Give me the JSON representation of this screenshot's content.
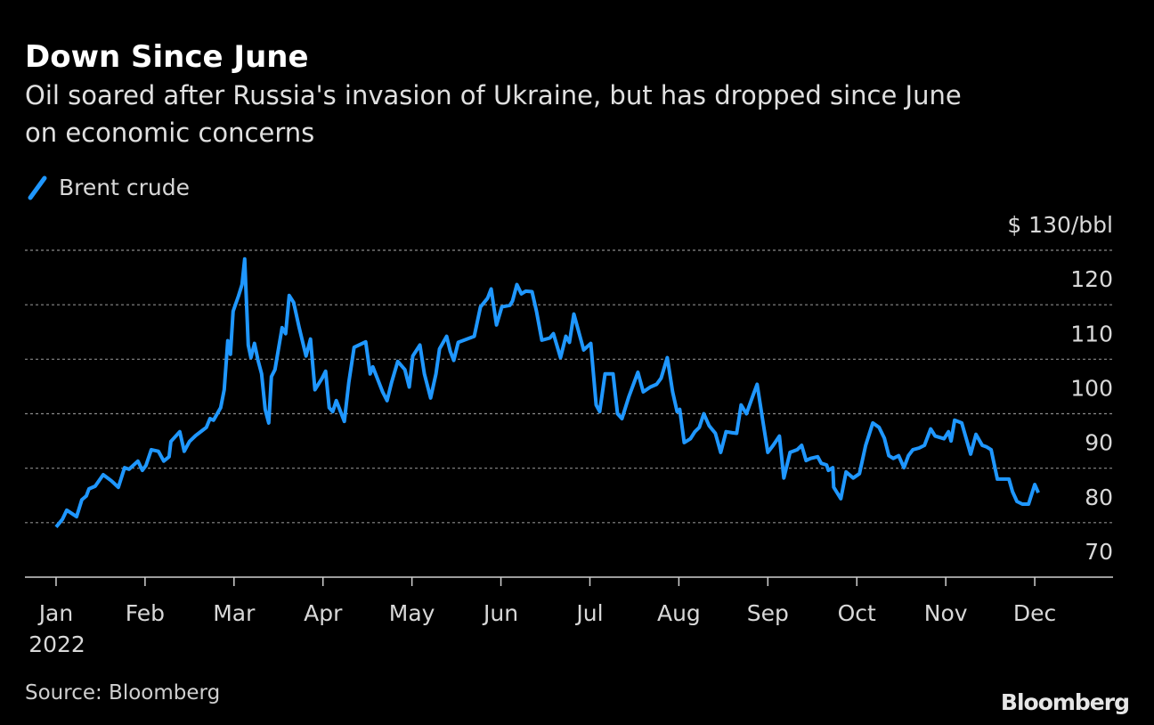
{
  "chart_data": {
    "type": "line",
    "title": "Down Since June",
    "subtitle": [
      "Oil soared after Russia's invasion of Ukraine, but has dropped since June",
      "on economic concerns"
    ],
    "source": "Source: Bloomberg",
    "brand": "Bloomberg",
    "year_label": "2022",
    "xlim": [
      -0.35,
      11.88
    ],
    "xticks": [
      {
        "value": 0,
        "label": "Jan"
      },
      {
        "value": 1,
        "label": "Feb"
      },
      {
        "value": 2,
        "label": "Mar"
      },
      {
        "value": 3,
        "label": "Apr"
      },
      {
        "value": 4,
        "label": "May"
      },
      {
        "value": 5,
        "label": "Jun"
      },
      {
        "value": 6,
        "label": "Jul"
      },
      {
        "value": 7,
        "label": "Aug"
      },
      {
        "value": 8,
        "label": "Sep"
      },
      {
        "value": 9,
        "label": "Oct"
      },
      {
        "value": 10,
        "label": "Nov"
      },
      {
        "value": 11,
        "label": "Dec"
      }
    ],
    "ylim": [
      70,
      130
    ],
    "yticks": [
      70,
      80,
      90,
      100,
      110,
      120,
      {
        "value": 130,
        "label": "$ 130/bbl"
      }
    ],
    "grid": true,
    "x": [
      0,
      0.07,
      0.12,
      0.23,
      0.29,
      0.34,
      0.37,
      0.44,
      0.53,
      0.62,
      0.7,
      0.77,
      0.82,
      0.92,
      0.97,
      1.01,
      1.07,
      1.15,
      1.21,
      1.27,
      1.29,
      1.39,
      1.44,
      1.5,
      1.57,
      1.65,
      1.69,
      1.73,
      1.77,
      1.85,
      1.89,
      1.93,
      1.96,
      1.99,
      2.05,
      2.09,
      2.12,
      2.16,
      2.19,
      2.23,
      2.27,
      2.31,
      2.35,
      2.39,
      2.42,
      2.46,
      2.54,
      2.58,
      2.62,
      2.67,
      2.73,
      2.81,
      2.86,
      2.91,
      2.99,
      3.03,
      3.07,
      3.11,
      3.15,
      3.24,
      3.29,
      3.35,
      3.48,
      3.53,
      3.56,
      3.67,
      3.72,
      3.77,
      3.84,
      3.92,
      3.97,
      4.01,
      4.09,
      4.14,
      4.21,
      4.27,
      4.31,
      4.39,
      4.43,
      4.47,
      4.52,
      4.7,
      4.77,
      4.85,
      4.89,
      4.95,
      5.01,
      5.1,
      5.13,
      5.18,
      5.23,
      5.28,
      5.35,
      5.4,
      5.46,
      5.55,
      5.59,
      5.67,
      5.73,
      5.77,
      5.82,
      5.93,
      6.01,
      6.07,
      6.11,
      6.17,
      6.26,
      6.31,
      6.36,
      6.44,
      6.54,
      6.6,
      6.68,
      6.75,
      6.8,
      6.87,
      6.93,
      6.98,
      7.01,
      7.06,
      7.13,
      7.18,
      7.23,
      7.28,
      7.34,
      7.41,
      7.47,
      7.53,
      7.6,
      7.65,
      7.7,
      7.76,
      7.83,
      7.88,
      7.94,
      8.0,
      8.06,
      8.13,
      8.18,
      8.25,
      8.33,
      8.38,
      8.43,
      8.48,
      8.56,
      8.6,
      8.66,
      8.68,
      8.73,
      8.74,
      8.82,
      8.88,
      8.96,
      9.03,
      9.1,
      9.18,
      9.25,
      9.31,
      9.36,
      9.41,
      9.47,
      9.53,
      9.58,
      9.63,
      9.7,
      9.76,
      9.83,
      9.88,
      9.98,
      10.03,
      10.06,
      10.1,
      10.18,
      10.28,
      10.34,
      10.41,
      10.46,
      10.51,
      10.58,
      10.65,
      10.71,
      10.75,
      10.8,
      10.86,
      10.93,
      11.0,
      11.04
    ],
    "series": [
      {
        "name": "Brent crude",
        "color": "#1f97ff",
        "values": [
          79.2,
          80.6,
          82.3,
          81.1,
          84.2,
          84.9,
          86.2,
          86.7,
          88.8,
          87.7,
          86.5,
          90.1,
          89.8,
          91.3,
          89.6,
          90.5,
          93.4,
          93.1,
          91.3,
          92.1,
          94.9,
          96.7,
          93.1,
          94.9,
          96.0,
          97.0,
          97.5,
          99.1,
          98.8,
          101.1,
          104.4,
          113.4,
          110.9,
          118.8,
          121.6,
          123.7,
          128.4,
          112.6,
          110.3,
          112.9,
          109.8,
          107.3,
          100.8,
          98.3,
          106.8,
          108.1,
          115.8,
          114.7,
          121.7,
          120.4,
          116.0,
          110.6,
          113.7,
          104.4,
          106.5,
          107.8,
          101.1,
          100.4,
          102.4,
          98.6,
          105.7,
          112.2,
          113.2,
          107.3,
          108.6,
          104.0,
          102.4,
          105.7,
          109.6,
          108.1,
          104.9,
          110.6,
          112.6,
          107.3,
          102.9,
          107.3,
          111.9,
          114.2,
          111.5,
          109.8,
          113.1,
          114.2,
          119.6,
          121.2,
          122.9,
          116.3,
          119.6,
          119.9,
          120.7,
          123.7,
          122.0,
          122.5,
          122.4,
          118.8,
          113.5,
          113.9,
          114.7,
          110.3,
          114.2,
          113.1,
          118.3,
          111.7,
          112.9,
          101.6,
          100.4,
          107.3,
          107.3,
          100.0,
          99.1,
          103.2,
          107.6,
          104.0,
          104.9,
          105.4,
          106.5,
          110.3,
          104.0,
          100.4,
          100.8,
          94.7,
          95.4,
          96.7,
          97.5,
          100.0,
          97.8,
          96.4,
          92.9,
          96.7,
          96.5,
          96.4,
          101.6,
          100.0,
          103.2,
          105.4,
          99.1,
          92.9,
          94.2,
          95.9,
          88.2,
          92.9,
          93.4,
          94.2,
          91.4,
          91.8,
          92.1,
          90.9,
          90.6,
          89.6,
          90.1,
          86.5,
          84.4,
          89.3,
          88.2,
          89.0,
          94.2,
          98.3,
          97.5,
          95.5,
          92.3,
          91.8,
          92.3,
          90.1,
          92.3,
          93.4,
          93.7,
          94.2,
          97.2,
          95.9,
          95.4,
          96.7,
          95.0,
          98.8,
          98.3,
          92.6,
          96.2,
          94.2,
          93.9,
          93.4,
          88.0,
          88.0,
          88.0,
          85.7,
          83.9,
          83.4,
          83.4,
          87.0,
          85.5
        ]
      }
    ]
  }
}
